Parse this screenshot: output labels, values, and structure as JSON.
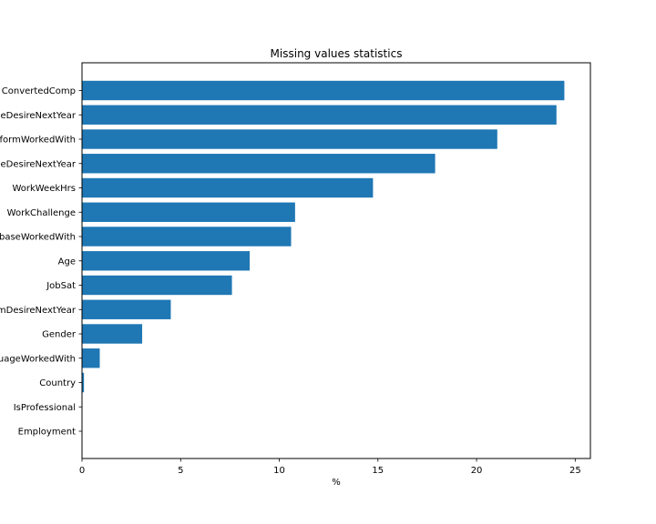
{
  "chart_data": {
    "type": "bar",
    "orientation": "horizontal",
    "title": "Missing values statistics",
    "xlabel": "%",
    "ylabel": "",
    "xlim": [
      0,
      25.77
    ],
    "xticks": [
      0,
      5,
      10,
      15,
      20,
      25
    ],
    "grid": false,
    "bar_color": "#1f77b4",
    "categories": [
      "ConvertedComp",
      "LanguageDesireNextYear",
      "PlatformWorkedWith",
      "DatabaseDesireNextYear",
      "WorkWeekHrs",
      "WorkChallenge",
      "DatabaseWorkedWith",
      "Age",
      "JobSat",
      "PlatformDesireNextYear",
      "Gender",
      "LanguageWorkedWith",
      "Country",
      "IsProfessional",
      "Employment"
    ],
    "values": [
      24.45,
      24.05,
      21.05,
      17.9,
      14.75,
      10.8,
      10.6,
      8.5,
      7.6,
      4.5,
      3.05,
      0.9,
      0.1,
      0.0,
      0.0
    ]
  }
}
